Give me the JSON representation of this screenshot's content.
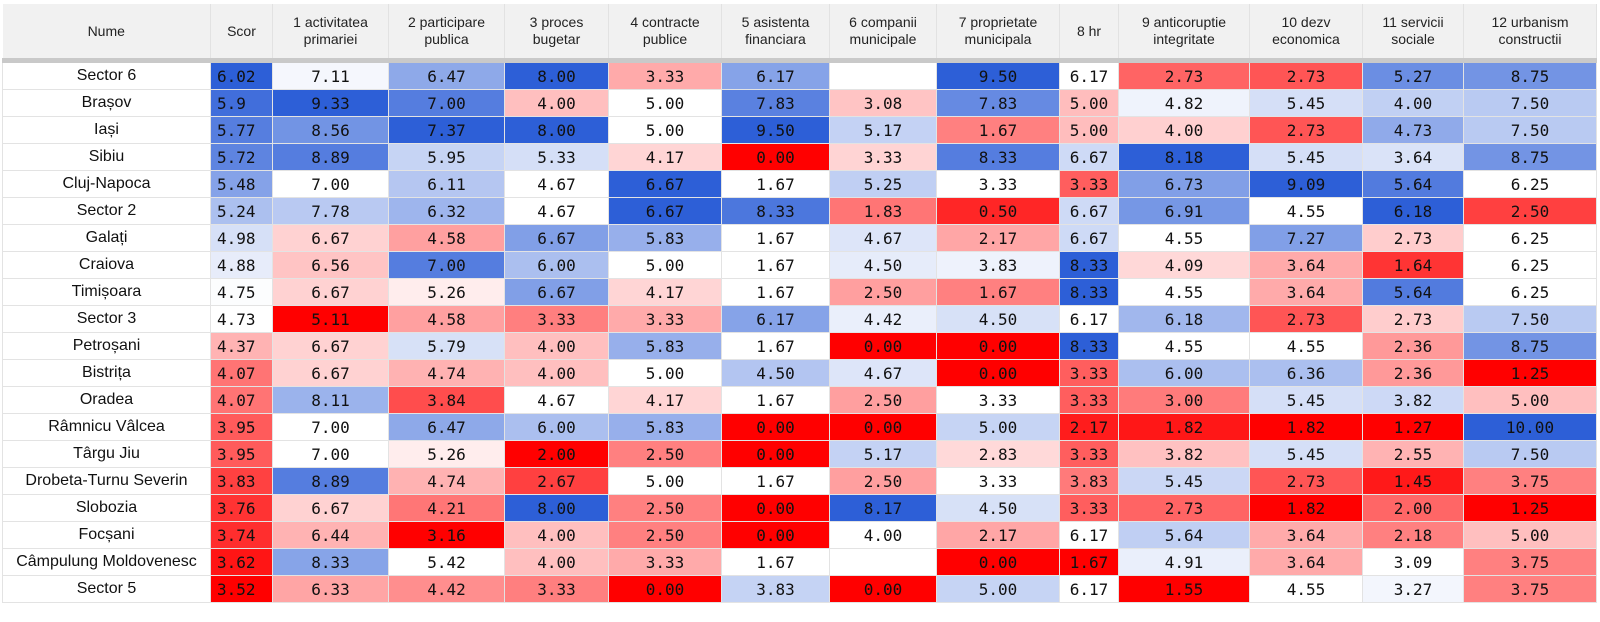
{
  "table": {
    "columns": [
      "Nume",
      "Scor",
      "1 activitatea primariei",
      "2 participare publica",
      "3 proces bugetar",
      "4 contracte publice",
      "5 asistenta financiara",
      "6 companii municipale",
      "7 proprietate municipala",
      "8 hr",
      "9 anticoruptie integritate",
      "10 dezv economica",
      "11 servicii sociale",
      "12 urbanism constructii"
    ],
    "rows": [
      {
        "name": "Sector 6",
        "values": [
          "6.02",
          "7.11",
          "6.47",
          "8.00",
          "3.33",
          "6.17",
          null,
          "9.50",
          "6.17",
          "2.73",
          "2.73",
          "5.27",
          "8.75"
        ]
      },
      {
        "name": "Brașov",
        "values": [
          "5.9",
          "9.33",
          "7.00",
          "4.00",
          "5.00",
          "7.83",
          "3.08",
          "7.83",
          "5.00",
          "4.82",
          "5.45",
          "4.00",
          "7.50"
        ]
      },
      {
        "name": "Iași",
        "values": [
          "5.77",
          "8.56",
          "7.37",
          "8.00",
          "5.00",
          "9.50",
          "5.17",
          "1.67",
          "5.00",
          "4.00",
          "2.73",
          "4.73",
          "7.50"
        ]
      },
      {
        "name": "Sibiu",
        "values": [
          "5.72",
          "8.89",
          "5.95",
          "5.33",
          "4.17",
          "0.00",
          "3.33",
          "8.33",
          "6.67",
          "8.18",
          "5.45",
          "3.64",
          "8.75"
        ]
      },
      {
        "name": "Cluj-Napoca",
        "values": [
          "5.48",
          "7.00",
          "6.11",
          "4.67",
          "6.67",
          "1.67",
          "5.25",
          "3.33",
          "3.33",
          "6.73",
          "9.09",
          "5.64",
          "6.25"
        ]
      },
      {
        "name": "Sector 2",
        "values": [
          "5.24",
          "7.78",
          "6.32",
          "4.67",
          "6.67",
          "8.33",
          "1.83",
          "0.50",
          "6.67",
          "6.91",
          "4.55",
          "6.18",
          "2.50"
        ]
      },
      {
        "name": "Galați",
        "values": [
          "4.98",
          "6.67",
          "4.58",
          "6.67",
          "5.83",
          "1.67",
          "4.67",
          "2.17",
          "6.67",
          "4.55",
          "7.27",
          "2.73",
          "6.25"
        ]
      },
      {
        "name": "Craiova",
        "values": [
          "4.88",
          "6.56",
          "7.00",
          "6.00",
          "5.00",
          "1.67",
          "4.50",
          "3.83",
          "8.33",
          "4.09",
          "3.64",
          "1.64",
          "6.25"
        ]
      },
      {
        "name": "Timișoara",
        "values": [
          "4.75",
          "6.67",
          "5.26",
          "6.67",
          "4.17",
          "1.67",
          "2.50",
          "1.67",
          "8.33",
          "4.55",
          "3.64",
          "5.64",
          "6.25"
        ]
      },
      {
        "name": "Sector 3",
        "values": [
          "4.73",
          "5.11",
          "4.58",
          "3.33",
          "3.33",
          "6.17",
          "4.42",
          "4.50",
          "6.17",
          "6.18",
          "2.73",
          "2.73",
          "7.50"
        ]
      },
      {
        "name": "Petroșani",
        "values": [
          "4.37",
          "6.67",
          "5.79",
          "4.00",
          "5.83",
          "1.67",
          "0.00",
          "0.00",
          "8.33",
          "4.55",
          "4.55",
          "2.36",
          "8.75"
        ]
      },
      {
        "name": "Bistrița",
        "values": [
          "4.07",
          "6.67",
          "4.74",
          "4.00",
          "5.00",
          "4.50",
          "4.67",
          "0.00",
          "3.33",
          "6.00",
          "6.36",
          "2.36",
          "1.25"
        ]
      },
      {
        "name": "Oradea",
        "values": [
          "4.07",
          "8.11",
          "3.84",
          "4.67",
          "4.17",
          "1.67",
          "2.50",
          "3.33",
          "3.33",
          "3.00",
          "5.45",
          "3.82",
          "5.00"
        ]
      },
      {
        "name": "Râmnicu Vâlcea",
        "values": [
          "3.95",
          "7.00",
          "6.47",
          "6.00",
          "5.83",
          "0.00",
          "0.00",
          "5.00",
          "2.17",
          "1.82",
          "1.82",
          "1.27",
          "10.00"
        ]
      },
      {
        "name": "Târgu Jiu",
        "values": [
          "3.95",
          "7.00",
          "5.26",
          "2.00",
          "2.50",
          "0.00",
          "5.17",
          "2.83",
          "3.33",
          "3.82",
          "5.45",
          "2.55",
          "7.50"
        ]
      },
      {
        "name": "Drobeta-Turnu Severin",
        "values": [
          "3.83",
          "8.89",
          "4.74",
          "2.67",
          "5.00",
          "1.67",
          "2.50",
          "3.33",
          "3.83",
          "5.45",
          "2.73",
          "1.45",
          "3.75"
        ]
      },
      {
        "name": "Slobozia",
        "values": [
          "3.76",
          "6.67",
          "4.21",
          "8.00",
          "2.50",
          "0.00",
          "8.17",
          "4.50",
          "3.33",
          "2.73",
          "1.82",
          "2.00",
          "1.25"
        ]
      },
      {
        "name": "Focșani",
        "values": [
          "3.74",
          "6.44",
          "3.16",
          "4.00",
          "2.50",
          "0.00",
          "4.00",
          "2.17",
          "6.17",
          "5.64",
          "3.64",
          "2.18",
          "5.00"
        ]
      },
      {
        "name": "Câmpulung Moldovenesc",
        "values": [
          "3.62",
          "8.33",
          "5.42",
          "4.00",
          "3.33",
          "1.67",
          null,
          "0.00",
          "1.67",
          "4.91",
          "3.64",
          "3.09",
          "3.75"
        ]
      },
      {
        "name": "Sector 5",
        "values": [
          "3.52",
          "6.33",
          "4.42",
          "3.33",
          "0.00",
          "3.83",
          "0.00",
          "5.00",
          "6.17",
          "1.55",
          "4.55",
          "3.27",
          "3.75"
        ]
      }
    ]
  }
}
